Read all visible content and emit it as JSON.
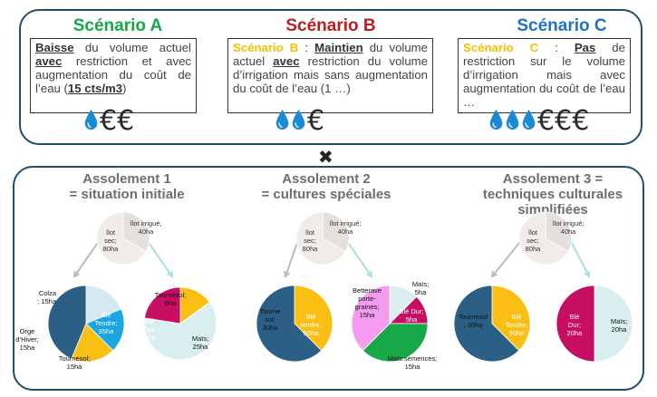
{
  "scenarios": [
    {
      "title": "Scénario A",
      "color": "#17a84a",
      "text_html": "<b><u>Baisse</u></b> du volume actuel <b><u>avec</u></b> restriction et avec augmentation du coût de l’eau (<b><u>15 cts/m3</u></b>)",
      "drops": 1,
      "euros": 2,
      "cost_icons": "drop-euro"
    },
    {
      "title": "Scénario B",
      "color": "#b81e22",
      "text_html": "<span class=\"yl\">Scénario B</span> : <b><u>Maintien</u></b> du volume actuel <b><u>avec</u></b> restriction du volume d’irrigation mais sans augmentation du coût de l’eau (1 …)",
      "drops": 2,
      "euros": 1
    },
    {
      "title": "Scénario C",
      "color": "#1f73c4",
      "text_html": "<span class=\"yl\">Scénario C</span> : <b><u>Pas</u></b> de restriction sur le volume d’irrigation mais avec augmentation du coût de l’eau …",
      "drops": 3,
      "euros": 3
    }
  ],
  "cross_symbol": "✖",
  "assolements": [
    {
      "title_line1": "Assolement 1",
      "title_line2": "= situation initiale",
      "title_line3": ""
    },
    {
      "title_line1": "Assolement 2",
      "title_line2": "= cultures spéciales",
      "title_line3": ""
    },
    {
      "title_line1": "Assolement 3 =",
      "title_line2": "techniques culturales",
      "title_line3": "simplifiées"
    }
  ],
  "ilot_labels": {
    "sec": [
      "îlot",
      "sec;",
      "80ha"
    ],
    "irrigue": [
      "îlot irrigué;",
      "40ha"
    ]
  },
  "pies": {
    "a1_sec": [
      {
        "label": [
          "Colza",
          "; 15ha"
        ],
        "value": 15,
        "color": "#d6e8f2"
      },
      {
        "label": [
          "Orge",
          "d’Hiver;",
          "15ha"
        ],
        "value": 15,
        "color": "#1aa6e0"
      },
      {
        "label": [
          "Tournesol;",
          "15ha"
        ],
        "value": 15,
        "color": "#fbbf14"
      },
      {
        "label": [
          "Blé",
          "Tendre;",
          "35ha"
        ],
        "value": 35,
        "color": "#2c5f86"
      }
    ],
    "a1_irr": [
      {
        "label": [
          "Tournesol;",
          "6ha"
        ],
        "value": 6,
        "color": "#fbbf14"
      },
      {
        "label": [
          "Maïs;",
          "25ha"
        ],
        "value": 25,
        "color": "#d9efef"
      },
      {
        "label": [
          "Blé",
          "Dur;",
          "9ha"
        ],
        "value": 9,
        "color": "#c60e63"
      }
    ],
    "a2_sec": [
      {
        "label": [
          "Tourne",
          "sol;",
          "30ha"
        ],
        "value": 30,
        "color": "#fbbf14"
      },
      {
        "label": [
          "Blé",
          "tendre;",
          "50ha"
        ],
        "value": 50,
        "color": "#2c5f86"
      }
    ],
    "a2_irr": [
      {
        "label": [
          "Maïs;",
          "5ha"
        ],
        "value": 5,
        "color": "#d9efef"
      },
      {
        "label": [
          "Blé Dur;",
          "5ha"
        ],
        "value": 5,
        "color": "#c60e63"
      },
      {
        "label": [
          "Maïs semences;",
          "15ha"
        ],
        "value": 15,
        "color": "#17a84a"
      },
      {
        "label": [
          "Betterave",
          "porte-",
          "graines;",
          "15ha"
        ],
        "value": 15,
        "color": "#f59cf0"
      }
    ],
    "a3_sec": [
      {
        "label": [
          "Tournesol",
          "; 30ha"
        ],
        "value": 30,
        "color": "#fbbf14"
      },
      {
        "label": [
          "Blé",
          "Tendre;",
          "50ha"
        ],
        "value": 50,
        "color": "#2c5f86"
      }
    ],
    "a3_irr": [
      {
        "label": [
          "Maïs;",
          "20ha"
        ],
        "value": 20,
        "color": "#d9efef"
      },
      {
        "label": [
          "Blé",
          "Dur;",
          "20ha"
        ],
        "value": 20,
        "color": "#c60e63"
      }
    ]
  }
}
